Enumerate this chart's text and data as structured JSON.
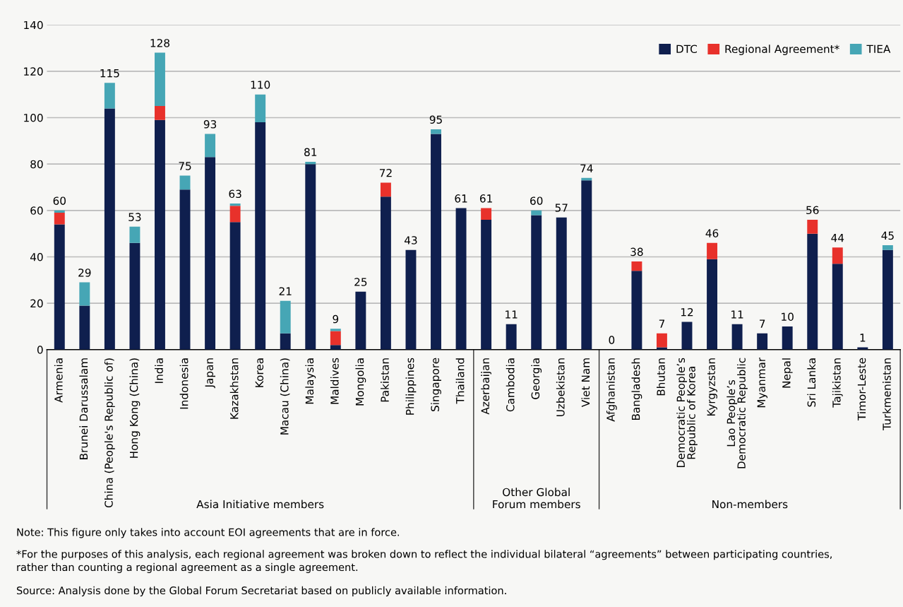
{
  "chart_data": {
    "type": "bar",
    "stacked": true,
    "categories": [
      "Armenia",
      "Brunei Darussalam",
      "China (People's Republic of)",
      "Hong Kong (China)",
      "India",
      "Indonesia",
      "Japan",
      "Kazakhstan",
      "Korea",
      "Macau (China)",
      "Malaysia",
      "Maldives",
      "Mongolia",
      "Pakistan",
      "Philippines",
      "Singapore",
      "Thailand",
      "Azerbaijan",
      "Cambodia",
      "Georgia",
      "Uzbekistan",
      "Viet Nam",
      "Afghanistan",
      "Bangladesh",
      "Bhutan",
      "Democratic People’s\nRepublic of Korea",
      "Kyrgyzstan",
      "Lao People’s\nDemocratic Republic",
      "Myanmar",
      "Nepal",
      "Sri Lanka",
      "Tajikistan",
      "Timor-Leste",
      "Turkmenistan"
    ],
    "series": [
      {
        "name": "DTC",
        "color": "#0f1f4e",
        "values": [
          54,
          19,
          104,
          46,
          99,
          69,
          83,
          55,
          98,
          7,
          80,
          2,
          25,
          66,
          43,
          93,
          61,
          56,
          11,
          58,
          57,
          73,
          0,
          34,
          1,
          12,
          39,
          11,
          7,
          10,
          50,
          37,
          1,
          43
        ]
      },
      {
        "name": "Regional Agreement*",
        "color": "#e8312b",
        "values": [
          5,
          0,
          0,
          0,
          6,
          0,
          0,
          7,
          0,
          0,
          0,
          6,
          0,
          6,
          0,
          0,
          0,
          5,
          0,
          0,
          0,
          0,
          0,
          4,
          6,
          0,
          7,
          0,
          0,
          0,
          6,
          7,
          0,
          0
        ]
      },
      {
        "name": "TIEA",
        "color": "#46a6b5",
        "values": [
          1,
          10,
          11,
          7,
          23,
          6,
          10,
          1,
          12,
          14,
          1,
          1,
          0,
          0,
          0,
          2,
          0,
          0,
          0,
          2,
          0,
          1,
          0,
          0,
          0,
          0,
          0,
          0,
          0,
          0,
          0,
          0,
          0,
          2
        ]
      }
    ],
    "totals": [
      "60",
      "29",
      "115",
      "53",
      "128",
      "75",
      "93",
      "63",
      "110",
      "21",
      "81",
      "9",
      "25",
      "72",
      "43",
      "95",
      "61",
      "61",
      "11",
      "60",
      "57",
      "74",
      "0",
      "38",
      "7",
      "12",
      "46",
      "11",
      "7",
      "10",
      "56",
      "44",
      "1",
      "45"
    ],
    "ylim": [
      0,
      140
    ],
    "yticks": [
      0,
      20,
      40,
      60,
      80,
      100,
      120,
      140
    ],
    "grid": "y",
    "legend": "top right",
    "annotations": [
      "Asia Initiative members",
      "Other Global\nForum members",
      "Non-members",
      "Note: This figure only takes into account EOI agreements that are in force.",
      "*For the purposes of this analysis, each regional agreement was broken down to reflect the individual bilateral “agreements” between participating countries,\nrather than counting a regional agreement as a single agreement.",
      "Source: Analysis done by the Global Forum Secretariat based on publicly available information."
    ]
  }
}
